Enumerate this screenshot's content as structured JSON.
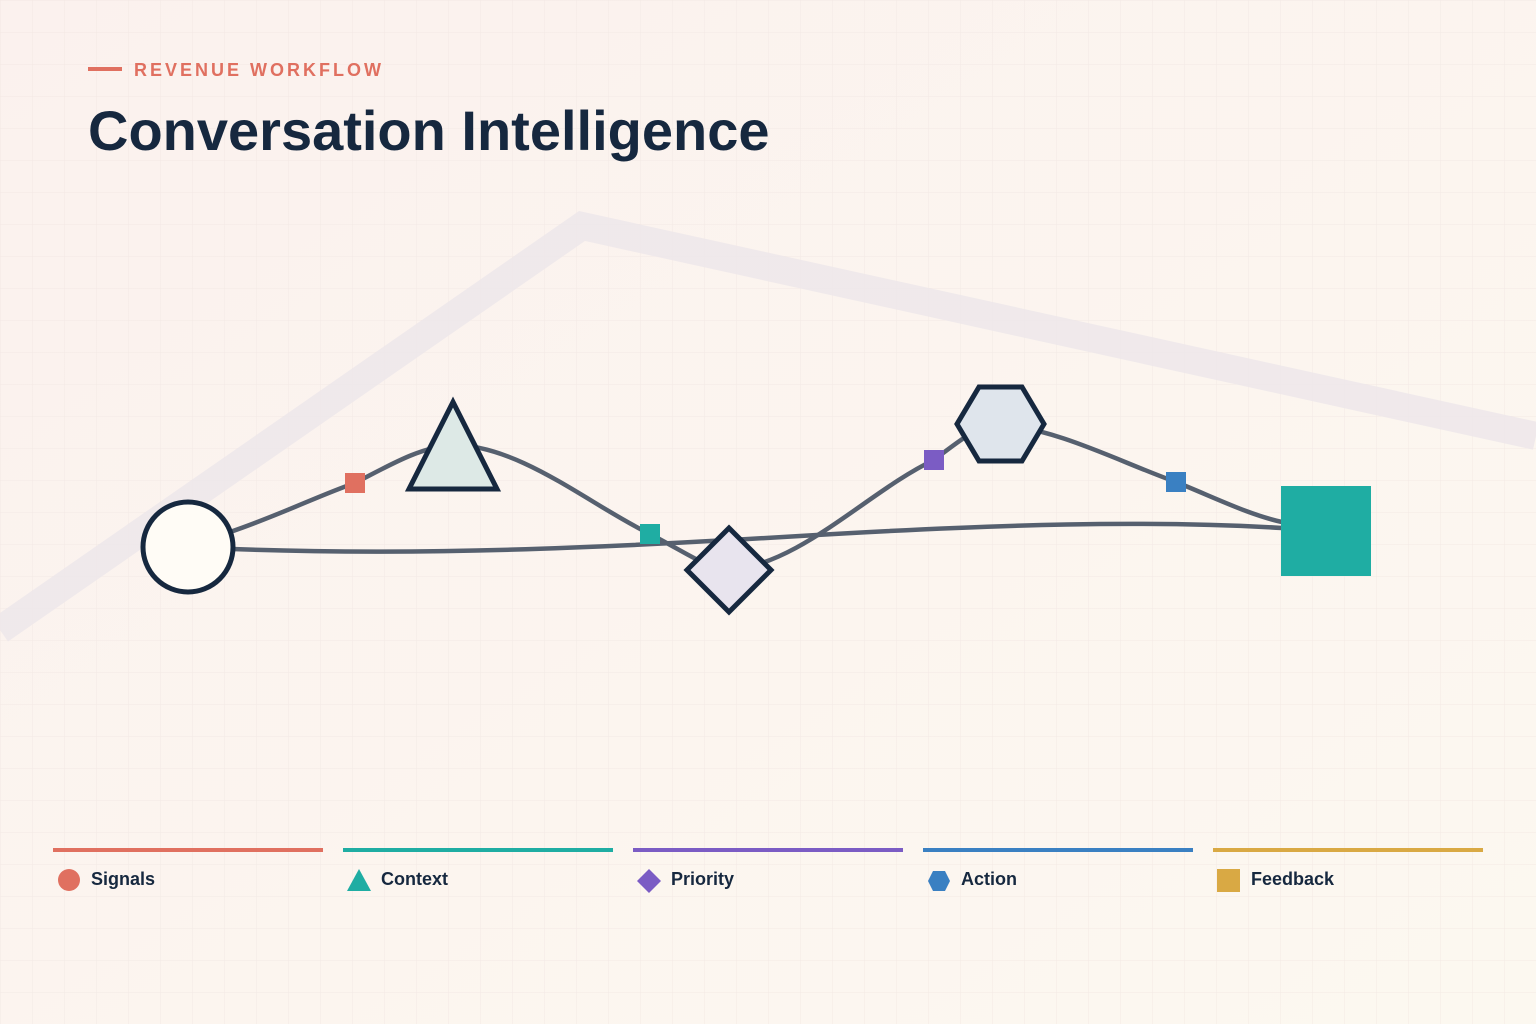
{
  "header": {
    "eyebrow": "REVENUE WORKFLOW",
    "title": "Conversation Intelligence"
  },
  "legend": [
    "Signals",
    "Context",
    "Priority",
    "Action",
    "Feedback"
  ]
}
